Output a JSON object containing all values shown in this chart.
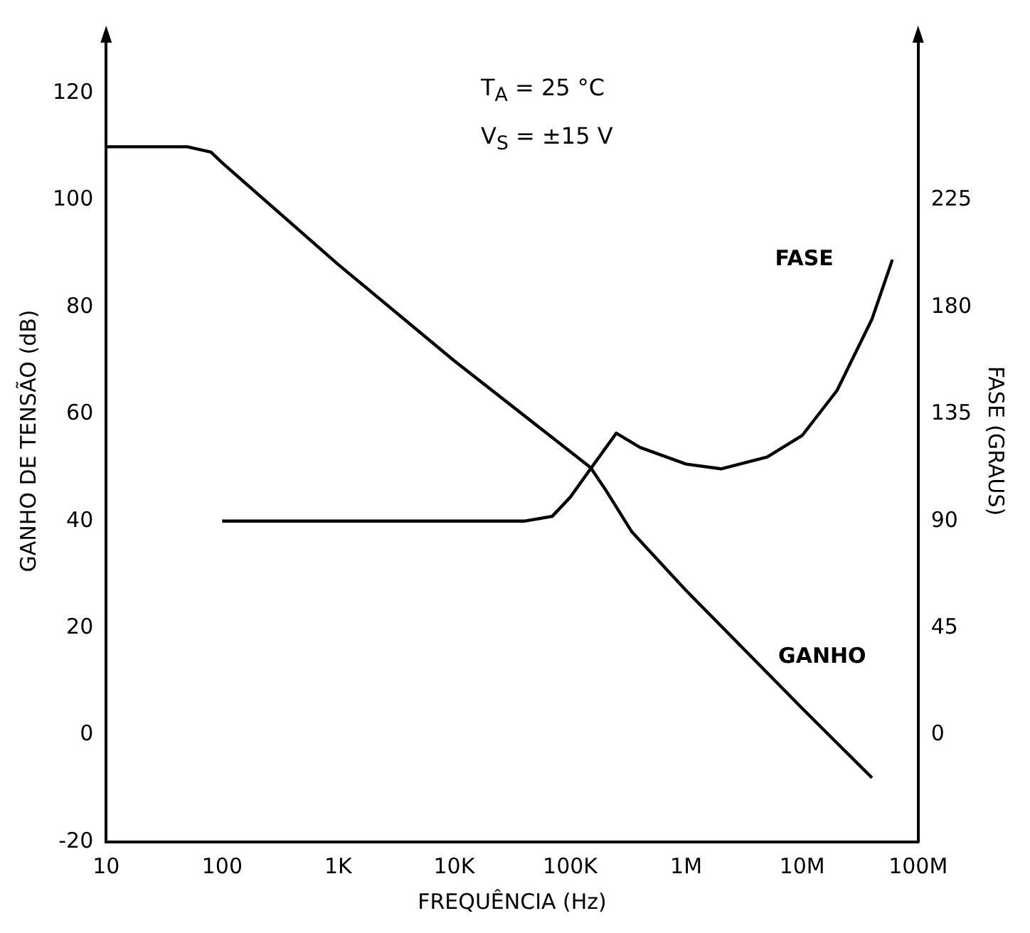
{
  "chart_data": {
    "type": "line",
    "xlabel": "FREQUÊNCIA (Hz)",
    "ylabel": "GANHO DE TENSÃO (dB)",
    "y2label": "FASE (GRAUS)",
    "annotations": [
      "T$_{A}$ = 25 °C",
      "V$_{S}$ = ±15 V"
    ],
    "log": "x",
    "grid": false,
    "legend": false,
    "marker": "none",
    "line_style": "solid",
    "xlim": [
      10,
      100000000
    ],
    "xticks": [
      10,
      100,
      {
        "value": 1000,
        "label": "1K"
      },
      {
        "value": 10000,
        "label": "10K"
      },
      {
        "value": 100000,
        "label": "100K"
      },
      {
        "value": 1000000,
        "label": "1M"
      },
      {
        "value": 10000000,
        "label": "10M"
      },
      {
        "value": 100000000,
        "label": "100M"
      }
    ],
    "ylim": [
      -20,
      130
    ],
    "yticks": [
      -20,
      0,
      20,
      40,
      60,
      80,
      100,
      120
    ],
    "y2lim": [
      -45,
      292.5
    ],
    "y2ticks": [
      0,
      45,
      90,
      135,
      180,
      225
    ],
    "series": [
      {
        "name": "GANHO",
        "color": "#000000",
        "x": [
          10,
          50,
          80,
          100,
          1000,
          10000,
          100000,
          150000,
          200000,
          340000,
          1000000,
          10000000,
          40000000
        ],
        "values": [
          110,
          110,
          109,
          107,
          88,
          70,
          53,
          50,
          46,
          38,
          27,
          5,
          -8
        ]
      },
      {
        "name": "FASE",
        "color": "#000000",
        "axis": "y2",
        "x": [
          100,
          40000,
          70000,
          100000,
          150000,
          250000,
          400000,
          1000000,
          2000000,
          5000000,
          10000000,
          20000000,
          40000000,
          60000000
        ],
        "values": [
          90,
          90,
          92,
          100,
          112,
          127,
          121,
          114,
          112,
          117,
          126,
          145,
          175,
          200
        ]
      }
    ]
  }
}
